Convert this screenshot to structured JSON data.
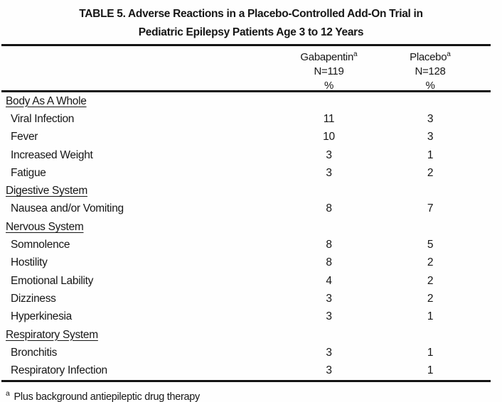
{
  "table": {
    "title_line1": "TABLE 5. Adverse Reactions in a Placebo-Controlled Add-On Trial in",
    "title_line2": "Pediatric Epilepsy Patients Age 3 to 12 Years",
    "columns": [
      {
        "drug": "Gabapentin",
        "footnote_mark": "a",
        "n": "N=119",
        "unit": "%"
      },
      {
        "drug": "Placebo",
        "footnote_mark": "a",
        "n": "N=128",
        "unit": "%"
      }
    ],
    "sections": [
      {
        "name": "Body As A Whole",
        "rows": [
          {
            "label": "Viral Infection",
            "gabapentin": "11",
            "placebo": "3"
          },
          {
            "label": "Fever",
            "gabapentin": "10",
            "placebo": "3"
          },
          {
            "label": "Increased Weight",
            "gabapentin": "3",
            "placebo": "1"
          },
          {
            "label": "Fatigue",
            "gabapentin": "3",
            "placebo": "2"
          }
        ]
      },
      {
        "name": "Digestive System",
        "rows": [
          {
            "label": "Nausea and/or Vomiting",
            "gabapentin": "8",
            "placebo": "7"
          }
        ]
      },
      {
        "name": "Nervous System",
        "rows": [
          {
            "label": "Somnolence",
            "gabapentin": "8",
            "placebo": "5"
          },
          {
            "label": "Hostility",
            "gabapentin": "8",
            "placebo": "2"
          },
          {
            "label": "Emotional Lability",
            "gabapentin": "4",
            "placebo": "2"
          },
          {
            "label": "Dizziness",
            "gabapentin": "3",
            "placebo": "2"
          },
          {
            "label": "Hyperkinesia",
            "gabapentin": "3",
            "placebo": "1"
          }
        ]
      },
      {
        "name": "Respiratory System",
        "rows": [
          {
            "label": "Bronchitis",
            "gabapentin": "3",
            "placebo": "1"
          },
          {
            "label": "Respiratory Infection",
            "gabapentin": "3",
            "placebo": "1"
          }
        ]
      }
    ],
    "footnote": {
      "mark": "a",
      "text": "Plus background antiepileptic drug therapy"
    }
  }
}
